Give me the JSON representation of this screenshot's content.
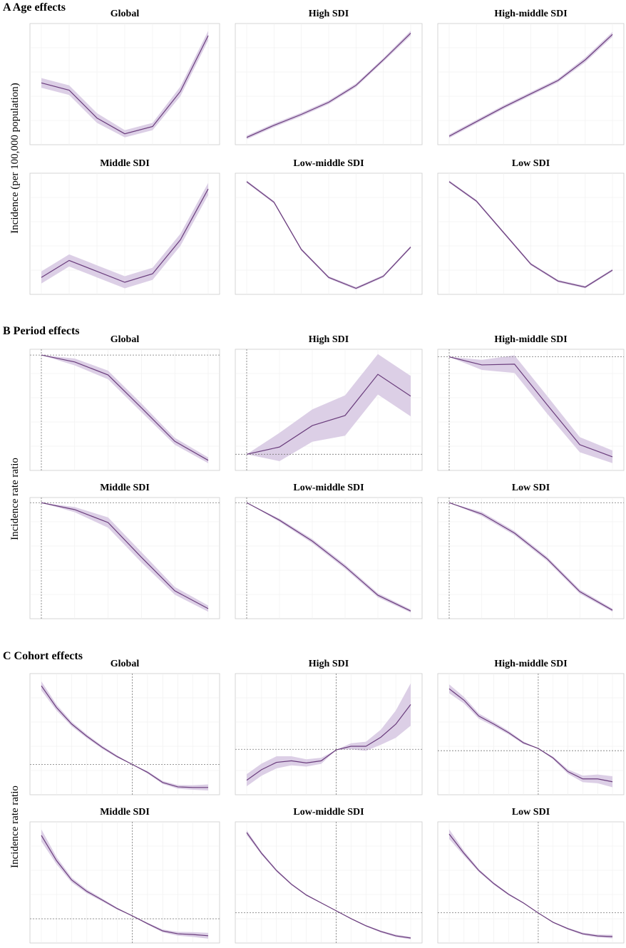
{
  "sections": [
    {
      "title": "A Age effects",
      "ylabel": "Incidence (per 100,000 population)"
    },
    {
      "title": "B Period effects",
      "ylabel": "Incidence rate ratio"
    },
    {
      "title": "C Cohort effects",
      "ylabel": "Incidence rate ratio"
    }
  ],
  "style": {
    "line_color": "#6a3d7c",
    "band_color": "#dccfe6",
    "grid": true
  },
  "chart_data": [
    {
      "type": "line",
      "title": "Global",
      "ylim": [
        0,
        100
      ],
      "values": [
        51,
        45,
        22,
        9,
        15,
        44,
        90
      ],
      "errors": [
        4,
        4,
        4,
        3,
        3,
        4,
        4
      ]
    },
    {
      "type": "line",
      "title": "High SDI",
      "ylim": [
        0,
        100
      ],
      "values": [
        6,
        16,
        25,
        35,
        49,
        70,
        92
      ],
      "errors": [
        1.5,
        1.5,
        1.5,
        1.5,
        1.5,
        1.5,
        2
      ]
    },
    {
      "type": "line",
      "title": "High-middle SDI",
      "ylim": [
        0,
        100
      ],
      "values": [
        7,
        19,
        31,
        42,
        53,
        70,
        91
      ],
      "errors": [
        1.5,
        1.5,
        1.5,
        1.5,
        1.5,
        2,
        2
      ]
    },
    {
      "type": "line",
      "title": "Middle SDI",
      "ylim": [
        0,
        100
      ],
      "values": [
        14,
        28,
        19,
        10,
        17,
        45,
        87
      ],
      "errors": [
        5,
        5,
        5,
        5,
        5,
        5,
        5
      ]
    },
    {
      "type": "line",
      "title": "Low-middle SDI",
      "ylim": [
        0,
        100
      ],
      "values": [
        93,
        76,
        37,
        14,
        5,
        15,
        39
      ],
      "errors": [
        1,
        1,
        1,
        1,
        1,
        1,
        1
      ]
    },
    {
      "type": "line",
      "title": "Low SDI",
      "ylim": [
        0,
        100
      ],
      "values": [
        93,
        77,
        51,
        25,
        11,
        6,
        20
      ],
      "errors": [
        1,
        1,
        1,
        1,
        1,
        1,
        1
      ]
    },
    {
      "type": "line",
      "title": "Global",
      "ylim": [
        0.6,
        1.02
      ],
      "ref_y": 1,
      "ref_x": 0,
      "values": [
        1,
        0.976,
        0.931,
        0.817,
        0.701,
        0.635
      ],
      "errors": [
        0,
        0.012,
        0.015,
        0.015,
        0.012,
        0.01
      ]
    },
    {
      "type": "line",
      "title": "High SDI",
      "ylim": [
        0.96,
        1.26
      ],
      "ref_y": 1,
      "ref_x": 0,
      "values": [
        1,
        1.018,
        1.071,
        1.096,
        1.198,
        1.144
      ],
      "errors": [
        0,
        0.035,
        0.04,
        0.05,
        0.05,
        0.05
      ]
    },
    {
      "type": "line",
      "title": "High-middle SDI",
      "ylim": [
        0.55,
        1.03
      ],
      "ref_y": 1,
      "ref_x": 0,
      "values": [
        1,
        0.968,
        0.971,
        0.81,
        0.652,
        0.604
      ],
      "errors": [
        0,
        0.02,
        0.035,
        0.035,
        0.03,
        0.025
      ]
    },
    {
      "type": "line",
      "title": "Middle SDI",
      "ylim": [
        0.55,
        1.02
      ],
      "ref_y": 1,
      "ref_x": 0,
      "values": [
        1,
        0.973,
        0.923,
        0.788,
        0.658,
        0.589
      ],
      "errors": [
        0,
        0.01,
        0.02,
        0.02,
        0.015,
        0.012
      ]
    },
    {
      "type": "line",
      "title": "Low-middle SDI",
      "ylim": [
        0.55,
        1.02
      ],
      "ref_y": 1,
      "ref_x": 0,
      "values": [
        1,
        0.932,
        0.851,
        0.752,
        0.641,
        0.58
      ],
      "errors": [
        0,
        0.006,
        0.008,
        0.008,
        0.008,
        0.006
      ]
    },
    {
      "type": "line",
      "title": "Low SDI",
      "ylim": [
        0.55,
        1.02
      ],
      "ref_y": 1,
      "ref_x": 0,
      "values": [
        1,
        0.956,
        0.882,
        0.782,
        0.655,
        0.583
      ],
      "errors": [
        0,
        0.008,
        0.008,
        0.008,
        0.008,
        0.006
      ]
    },
    {
      "type": "line",
      "title": "Global",
      "ylim": [
        0.8,
        1.6
      ],
      "ref_y": 1,
      "ref_x": 6,
      "values": [
        1.519,
        1.376,
        1.267,
        1.186,
        1.114,
        1.052,
        1,
        0.948,
        0.881,
        0.852,
        0.848,
        0.848
      ],
      "errors": [
        0.03,
        0.02,
        0.015,
        0.012,
        0.01,
        0.008,
        0,
        0.008,
        0.01,
        0.012,
        0.015,
        0.02
      ]
    },
    {
      "type": "line",
      "title": "High SDI",
      "ylim": [
        0.85,
        1.25
      ],
      "ref_y": 1,
      "ref_x": 6,
      "values": [
        0.898,
        0.933,
        0.957,
        0.962,
        0.955,
        0.962,
        0.998,
        1.01,
        1.01,
        1.04,
        1.083,
        1.148
      ],
      "errors": [
        0.02,
        0.02,
        0.02,
        0.015,
        0.012,
        0.01,
        0,
        0.01,
        0.015,
        0.025,
        0.045,
        0.07
      ]
    },
    {
      "type": "line",
      "title": "High-middle SDI",
      "ylim": [
        0.8,
        1.35
      ],
      "ref_y": 1,
      "ref_x": 6,
      "values": [
        1.281,
        1.229,
        1.157,
        1.121,
        1.082,
        1.036,
        1.01,
        0.967,
        0.905,
        0.872,
        0.872,
        0.859
      ],
      "errors": [
        0.02,
        0.015,
        0.012,
        0.01,
        0.008,
        0.006,
        0,
        0.006,
        0.01,
        0.015,
        0.02,
        0.025
      ]
    },
    {
      "type": "line",
      "title": "Middle SDI",
      "ylim": [
        0.9,
        1.4
      ],
      "ref_y": 1,
      "ref_x": 6,
      "values": [
        1.344,
        1.24,
        1.16,
        1.113,
        1.078,
        1.042,
        1.012,
        0.98,
        0.95,
        0.938,
        0.935,
        0.93
      ],
      "errors": [
        0.025,
        0.015,
        0.01,
        0.008,
        0.006,
        0.004,
        0,
        0.004,
        0.006,
        0.008,
        0.01,
        0.012
      ]
    },
    {
      "type": "line",
      "title": "Low-middle SDI",
      "ylim": [
        0.75,
        1.75
      ],
      "ref_y": 1,
      "ref_x": 6,
      "values": [
        1.661,
        1.49,
        1.348,
        1.235,
        1.146,
        1.081,
        1.016,
        0.951,
        0.892,
        0.845,
        0.809,
        0.791
      ],
      "errors": [
        0.02,
        0.012,
        0.01,
        0.008,
        0.006,
        0.004,
        0,
        0.004,
        0.006,
        0.008,
        0.01,
        0.01
      ]
    },
    {
      "type": "line",
      "title": "Low SDI",
      "ylim": [
        0.75,
        1.75
      ],
      "ref_y": 1,
      "ref_x": 6,
      "values": [
        1.649,
        1.49,
        1.348,
        1.241,
        1.152,
        1.081,
        0.998,
        0.921,
        0.868,
        0.826,
        0.808,
        0.803
      ],
      "errors": [
        0.04,
        0.02,
        0.012,
        0.01,
        0.008,
        0.005,
        0,
        0.005,
        0.008,
        0.01,
        0.012,
        0.015
      ]
    }
  ]
}
